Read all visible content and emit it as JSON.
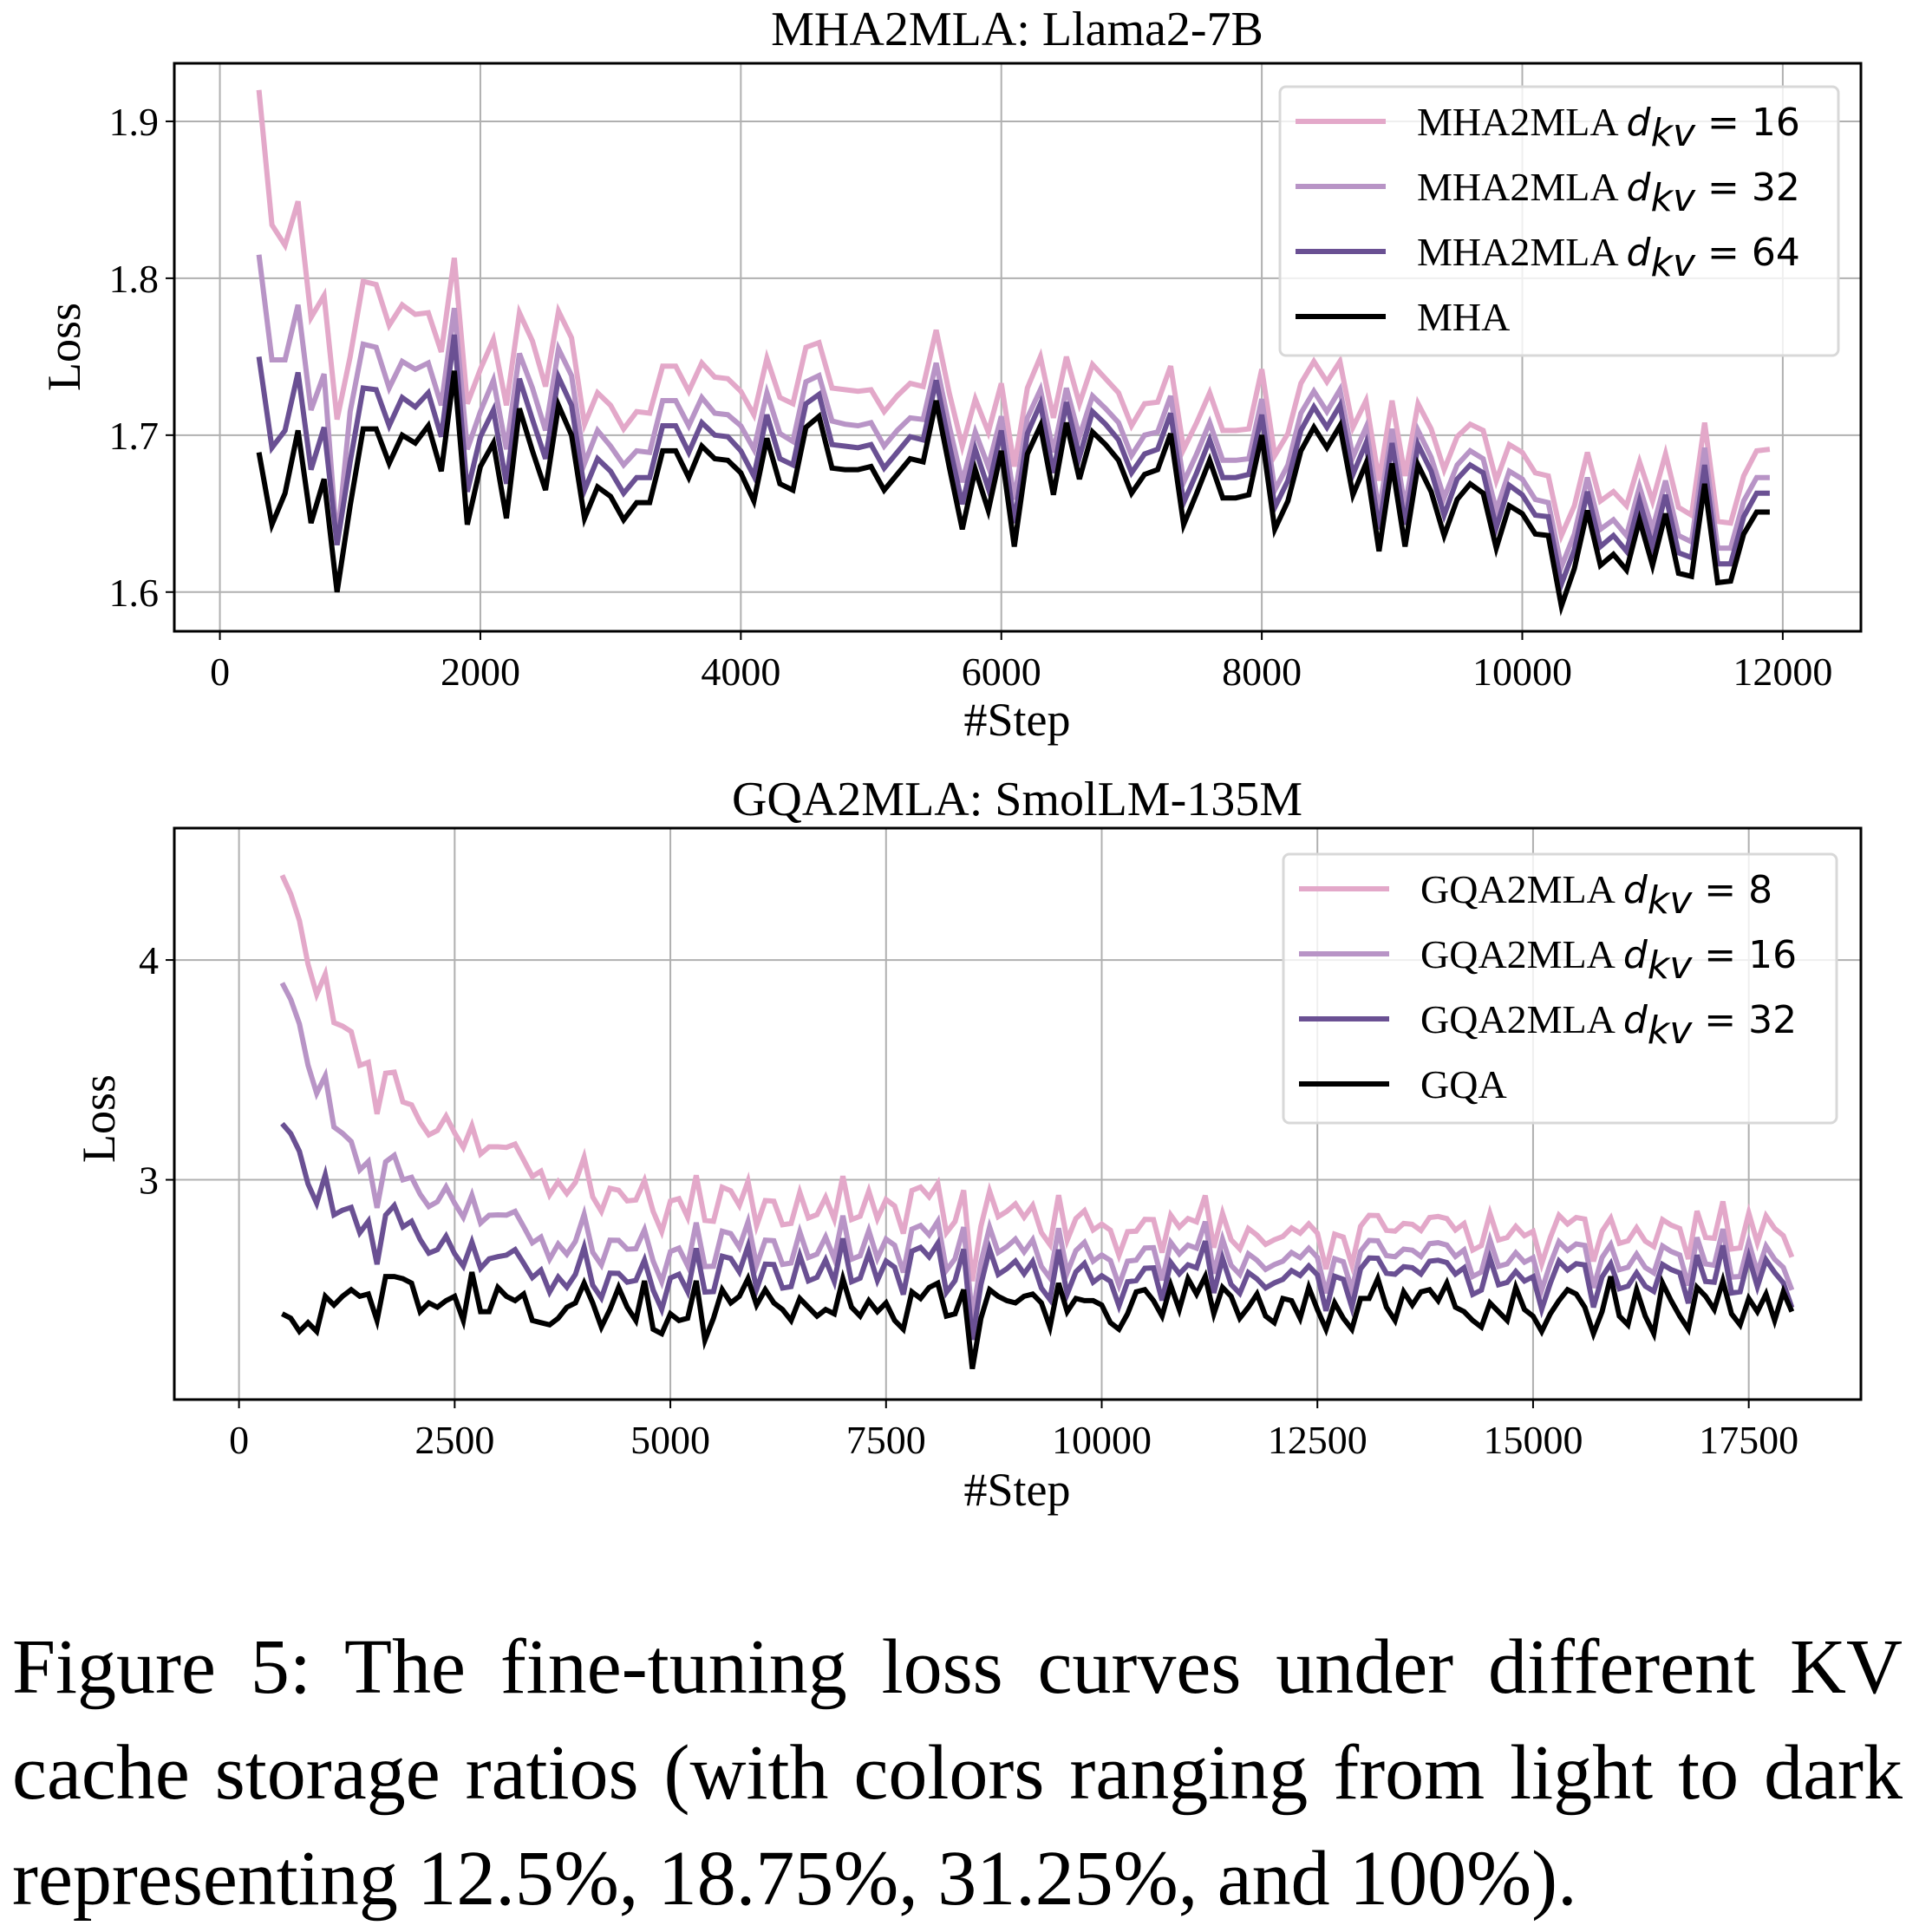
{
  "caption": "Figure 5: The fine-tuning loss curves under different KV cache storage ratios (with colors ranging from light to dark representing 12.5%, 18.75%, 31.25%, and 100%).",
  "colors": {
    "light_pink": "#e3a8c9",
    "light_purple": "#b894c6",
    "dark_purple": "#6a5093",
    "black": "#000000",
    "grid": "#b0b0b0"
  },
  "chart_data": [
    {
      "type": "line",
      "title": "MHA2MLA: Llama2-7B",
      "xlabel": "#Step",
      "ylabel": "Loss",
      "xlim": [
        -350,
        12600
      ],
      "ylim": [
        1.575,
        1.937
      ],
      "xticks": [
        0,
        2000,
        4000,
        6000,
        8000,
        10000,
        12000
      ],
      "xtick_labels": [
        "0",
        "2000",
        "4000",
        "6000",
        "8000",
        "10000",
        "12000"
      ],
      "yticks": [
        1.6,
        1.7,
        1.8,
        1.9
      ],
      "ytick_labels": [
        "1.6",
        "1.7",
        "1.8",
        "1.9"
      ],
      "grid": true,
      "legend_position": "top-right",
      "x_start": 300,
      "x_step": 100,
      "base_series": "MHA",
      "base": [
        1.689,
        1.643,
        1.663,
        1.703,
        1.644,
        1.672,
        1.6,
        1.655,
        1.704,
        1.704,
        1.682,
        1.7,
        1.695,
        1.706,
        1.677,
        1.741,
        1.643,
        1.68,
        1.695,
        1.647,
        1.717,
        1.69,
        1.665,
        1.719,
        1.7,
        1.647,
        1.667,
        1.661,
        1.646,
        1.657,
        1.657,
        1.69,
        1.69,
        1.673,
        1.693,
        1.685,
        1.684,
        1.676,
        1.658,
        1.698,
        1.669,
        1.665,
        1.705,
        1.712,
        1.679,
        1.678,
        1.678,
        1.68,
        1.665,
        1.675,
        1.685,
        1.683,
        1.722,
        1.68,
        1.64,
        1.678,
        1.652,
        1.69,
        1.629,
        1.688,
        1.706,
        1.662,
        1.708,
        1.672,
        1.702,
        1.694,
        1.684,
        1.663,
        1.675,
        1.678,
        1.701,
        1.643,
        1.663,
        1.684,
        1.66,
        1.66,
        1.662,
        1.7,
        1.64,
        1.658,
        1.69,
        1.705,
        1.692,
        1.706,
        1.662,
        1.682,
        1.626,
        1.682,
        1.629,
        1.681,
        1.664,
        1.636,
        1.659,
        1.669,
        1.663,
        1.628,
        1.655,
        1.65,
        1.637,
        1.636,
        1.591,
        1.615,
        1.652,
        1.617,
        1.624,
        1.614,
        1.646,
        1.617,
        1.65,
        1.612,
        1.61,
        1.669,
        1.606,
        1.607,
        1.637,
        1.651,
        1.651
      ],
      "series": [
        {
          "name": "MHA2MLA d_kv = 16",
          "label_prefix": "MHA2MLA ",
          "dkv": "16",
          "color": "#e3a8c9",
          "offset": [
            0.231,
            0.191,
            0.158,
            0.146,
            0.131,
            0.117,
            0.11,
            0.095,
            0.094,
            0.092,
            0.088,
            0.083,
            0.082,
            0.072,
            0.076,
            0.072,
            0.077,
            0.062,
            0.066,
            0.072,
            0.061,
            0.07,
            0.066,
            0.06,
            0.062,
            0.06,
            0.06,
            0.058,
            0.058,
            0.058,
            0.057,
            0.054,
            0.054,
            0.055,
            0.053,
            0.052,
            0.052,
            0.052,
            0.055,
            0.051,
            0.055,
            0.055,
            0.051,
            0.047,
            0.051,
            0.051,
            0.05,
            0.049,
            0.05,
            0.05,
            0.048,
            0.048,
            0.045,
            0.047,
            0.053,
            0.045,
            0.05,
            0.043,
            0.051,
            0.042,
            0.044,
            0.049,
            0.042,
            0.048,
            0.043,
            0.042,
            0.043,
            0.043,
            0.045,
            0.043,
            0.043,
            0.048,
            0.045,
            0.043,
            0.043,
            0.043,
            0.042,
            0.042,
            0.047,
            0.043,
            0.043,
            0.042,
            0.042,
            0.041,
            0.043,
            0.04,
            0.045,
            0.04,
            0.045,
            0.039,
            0.04,
            0.042,
            0.04,
            0.038,
            0.04,
            0.043,
            0.039,
            0.039,
            0.039,
            0.038,
            0.045,
            0.04,
            0.037,
            0.041,
            0.04,
            0.041,
            0.037,
            0.041,
            0.038,
            0.042,
            0.039,
            0.039,
            0.039,
            0.037,
            0.037,
            0.039,
            0.04
          ]
        },
        {
          "name": "MHA2MLA d_kv = 32",
          "label_prefix": "MHA2MLA ",
          "dkv": "32",
          "color": "#b894c6",
          "offset": [
            0.126,
            0.105,
            0.085,
            0.08,
            0.072,
            0.067,
            0.031,
            0.06,
            0.054,
            0.052,
            0.048,
            0.047,
            0.047,
            0.04,
            0.042,
            0.04,
            0.048,
            0.035,
            0.04,
            0.044,
            0.035,
            0.04,
            0.038,
            0.036,
            0.038,
            0.035,
            0.036,
            0.032,
            0.035,
            0.033,
            0.032,
            0.032,
            0.032,
            0.033,
            0.031,
            0.029,
            0.029,
            0.03,
            0.033,
            0.029,
            0.032,
            0.031,
            0.029,
            0.026,
            0.03,
            0.029,
            0.028,
            0.028,
            0.028,
            0.028,
            0.026,
            0.027,
            0.024,
            0.026,
            0.03,
            0.024,
            0.028,
            0.022,
            0.03,
            0.023,
            0.023,
            0.027,
            0.022,
            0.027,
            0.023,
            0.023,
            0.024,
            0.024,
            0.025,
            0.024,
            0.024,
            0.027,
            0.025,
            0.024,
            0.024,
            0.024,
            0.023,
            0.023,
            0.025,
            0.023,
            0.024,
            0.023,
            0.023,
            0.023,
            0.024,
            0.023,
            0.025,
            0.022,
            0.025,
            0.022,
            0.022,
            0.024,
            0.022,
            0.021,
            0.022,
            0.024,
            0.022,
            0.022,
            0.022,
            0.021,
            0.025,
            0.022,
            0.021,
            0.023,
            0.022,
            0.022,
            0.021,
            0.023,
            0.021,
            0.024,
            0.022,
            0.023,
            0.022,
            0.021,
            0.021,
            0.022,
            0.022
          ]
        },
        {
          "name": "MHA2MLA d_kv = 64",
          "label_prefix": "MHA2MLA ",
          "dkv": "64",
          "color": "#6a5093",
          "offset": [
            0.061,
            0.049,
            0.04,
            0.037,
            0.034,
            0.033,
            0.03,
            0.028,
            0.026,
            0.025,
            0.024,
            0.024,
            0.023,
            0.021,
            0.022,
            0.023,
            0.021,
            0.019,
            0.021,
            0.022,
            0.019,
            0.02,
            0.02,
            0.018,
            0.019,
            0.018,
            0.018,
            0.016,
            0.017,
            0.016,
            0.016,
            0.016,
            0.016,
            0.016,
            0.015,
            0.015,
            0.015,
            0.014,
            0.016,
            0.015,
            0.016,
            0.016,
            0.015,
            0.014,
            0.015,
            0.015,
            0.014,
            0.014,
            0.014,
            0.014,
            0.014,
            0.014,
            0.013,
            0.014,
            0.016,
            0.013,
            0.014,
            0.013,
            0.015,
            0.013,
            0.014,
            0.014,
            0.013,
            0.014,
            0.013,
            0.013,
            0.013,
            0.013,
            0.013,
            0.013,
            0.013,
            0.014,
            0.013,
            0.013,
            0.013,
            0.013,
            0.013,
            0.013,
            0.014,
            0.013,
            0.013,
            0.013,
            0.013,
            0.013,
            0.013,
            0.013,
            0.014,
            0.013,
            0.014,
            0.013,
            0.013,
            0.013,
            0.013,
            0.012,
            0.013,
            0.013,
            0.013,
            0.012,
            0.012,
            0.012,
            0.014,
            0.012,
            0.012,
            0.012,
            0.012,
            0.012,
            0.012,
            0.012,
            0.012,
            0.013,
            0.012,
            0.012,
            0.012,
            0.011,
            0.011,
            0.012,
            0.012
          ]
        },
        {
          "name": "MHA",
          "label_prefix": "MHA",
          "dkv": "",
          "color": "#000000",
          "offset": null
        }
      ]
    },
    {
      "type": "line",
      "title": "GQA2MLA: SmolLM-135M",
      "xlabel": "#Step",
      "ylabel": "Loss",
      "xlim": [
        -750,
        18800
      ],
      "ylim": [
        2.0,
        4.6
      ],
      "xticks": [
        0,
        2500,
        5000,
        7500,
        10000,
        12500,
        15000,
        17500
      ],
      "xtick_labels": [
        "0",
        "2500",
        "5000",
        "7500",
        "10000",
        "12500",
        "15000",
        "17500"
      ],
      "yticks": [
        3,
        4
      ],
      "ytick_labels": [
        "3",
        "4"
      ],
      "grid": true,
      "legend_position": "top-right",
      "x_start": 500,
      "x_step": 100,
      "base_series": "GQA",
      "base": [
        2.39,
        2.37,
        2.31,
        2.35,
        2.31,
        2.47,
        2.43,
        2.47,
        2.5,
        2.47,
        2.48,
        2.36,
        2.56,
        2.56,
        2.55,
        2.53,
        2.4,
        2.44,
        2.42,
        2.45,
        2.47,
        2.36,
        2.58,
        2.4,
        2.4,
        2.51,
        2.47,
        2.45,
        2.48,
        2.36,
        2.35,
        2.34,
        2.37,
        2.42,
        2.44,
        2.53,
        2.44,
        2.33,
        2.41,
        2.51,
        2.42,
        2.36,
        2.54,
        2.32,
        2.3,
        2.39,
        2.36,
        2.37,
        2.54,
        2.27,
        2.37,
        2.5,
        2.44,
        2.47,
        2.55,
        2.43,
        2.5,
        2.44,
        2.41,
        2.36,
        2.46,
        2.42,
        2.38,
        2.41,
        2.39,
        2.55,
        2.42,
        2.38,
        2.45,
        2.4,
        2.44,
        2.36,
        2.32,
        2.49,
        2.46,
        2.51,
        2.53,
        2.38,
        2.39,
        2.5,
        2.14,
        2.37,
        2.5,
        2.47,
        2.45,
        2.44,
        2.47,
        2.48,
        2.44,
        2.33,
        2.53,
        2.4,
        2.46,
        2.45,
        2.45,
        2.43,
        2.35,
        2.32,
        2.39,
        2.49,
        2.5,
        2.45,
        2.38,
        2.52,
        2.41,
        2.55,
        2.48,
        2.56,
        2.39,
        2.51,
        2.47,
        2.37,
        2.42,
        2.48,
        2.38,
        2.35,
        2.46,
        2.45,
        2.37,
        2.51,
        2.41,
        2.32,
        2.44,
        2.37,
        2.32,
        2.46,
        2.46,
        2.55,
        2.42,
        2.36,
        2.49,
        2.43,
        2.49,
        2.5,
        2.45,
        2.53,
        2.42,
        2.4,
        2.36,
        2.33,
        2.44,
        2.4,
        2.36,
        2.51,
        2.41,
        2.38,
        2.31,
        2.39,
        2.45,
        2.5,
        2.48,
        2.42,
        2.3,
        2.4,
        2.56,
        2.38,
        2.34,
        2.5,
        2.38,
        2.3,
        2.53,
        2.45,
        2.38,
        2.32,
        2.51,
        2.47,
        2.41,
        2.54,
        2.39,
        2.34,
        2.46,
        2.4,
        2.48,
        2.36,
        2.49,
        2.4
      ],
      "series": [
        {
          "name": "GQA2MLA d_kv = 8",
          "label_prefix": "GQA2MLA ",
          "dkv": "8",
          "color": "#e3a8c9",
          "trend": [
            [
              500,
              4.48
            ],
            [
              700,
              4.25
            ],
            [
              900,
              3.95
            ],
            [
              1300,
              3.55
            ],
            [
              2000,
              3.25
            ],
            [
              2500,
              3.2
            ],
            [
              3500,
              3.05
            ],
            [
              4500,
              2.9
            ],
            [
              5000,
              2.95
            ],
            [
              6000,
              2.85
            ],
            [
              7500,
              2.9
            ],
            [
              9000,
              2.82
            ],
            [
              11000,
              2.75
            ],
            [
              12500,
              2.75
            ],
            [
              14000,
              2.78
            ],
            [
              15500,
              2.77
            ],
            [
              17000,
              2.76
            ],
            [
              17800,
              2.78
            ],
            [
              18000,
              2.65
            ]
          ]
        },
        {
          "name": "GQA2MLA d_kv = 16",
          "label_prefix": "GQA2MLA ",
          "dkv": "16",
          "color": "#b894c6",
          "trend": [
            [
              500,
              3.99
            ],
            [
              700,
              3.78
            ],
            [
              900,
              3.5
            ],
            [
              1300,
              3.05
            ],
            [
              2000,
              2.92
            ],
            [
              2500,
              2.88
            ],
            [
              3500,
              2.75
            ],
            [
              4500,
              2.68
            ],
            [
              5000,
              2.72
            ],
            [
              6000,
              2.67
            ],
            [
              7500,
              2.72
            ],
            [
              9000,
              2.66
            ],
            [
              11000,
              2.63
            ],
            [
              12500,
              2.64
            ],
            [
              14000,
              2.66
            ],
            [
              15500,
              2.65
            ],
            [
              17000,
              2.64
            ],
            [
              17800,
              2.64
            ],
            [
              18000,
              2.5
            ]
          ]
        },
        {
          "name": "GQA2MLA d_kv = 32",
          "label_prefix": "GQA2MLA ",
          "dkv": "32",
          "color": "#6a5093",
          "trend": [
            [
              500,
              3.35
            ],
            [
              700,
              3.2
            ],
            [
              900,
              3.0
            ],
            [
              1300,
              2.75
            ],
            [
              2000,
              2.72
            ],
            [
              2500,
              2.65
            ],
            [
              3500,
              2.6
            ],
            [
              4500,
              2.53
            ],
            [
              5000,
              2.6
            ],
            [
              6000,
              2.56
            ],
            [
              7500,
              2.62
            ],
            [
              9000,
              2.56
            ],
            [
              11000,
              2.54
            ],
            [
              12500,
              2.56
            ],
            [
              14000,
              2.58
            ],
            [
              15500,
              2.56
            ],
            [
              17000,
              2.56
            ],
            [
              17800,
              2.58
            ],
            [
              18000,
              2.42
            ]
          ]
        },
        {
          "name": "GQA",
          "label_prefix": "GQA",
          "dkv": "",
          "color": "#000000",
          "trend": null
        }
      ]
    }
  ]
}
